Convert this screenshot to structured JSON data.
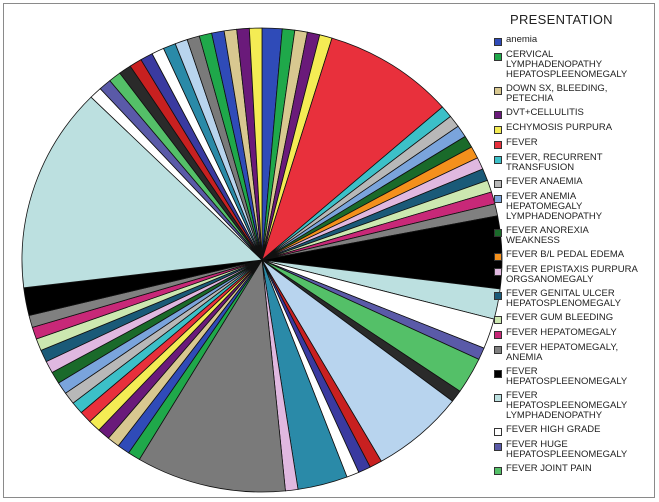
{
  "chart_data": {
    "type": "pie",
    "title": "",
    "legend_title": "PRESENTATION",
    "legend_placement": "right",
    "unit": "",
    "slices": [
      {
        "label": "anemia",
        "color": "#2f4bb8",
        "value": 1.6
      },
      {
        "label": "CERVICAL\nLYMPHADENOPATHY\nHEPATOSPLEENOMEGALY",
        "color": "#1fa84a",
        "value": 1
      },
      {
        "label": "DOWN SX, BLEEDING,\nPETECHIA",
        "color": "#d8c890",
        "value": 1
      },
      {
        "label": "DVT+CELLULITIS",
        "color": "#6a1a7a",
        "value": 1
      },
      {
        "label": "ECHYMOSIS PURPURA",
        "color": "#f4ec54",
        "value": 1
      },
      {
        "label": "FEVER",
        "color": "#e8303c",
        "value": 10.5
      },
      {
        "label": "FEVER, RECURRENT\nTRANSFUSION",
        "color": "#3cc0c8",
        "value": 1
      },
      {
        "label": "FEVER ANAEMIA",
        "color": "#b8b8b8",
        "value": 1
      },
      {
        "label": "FEVER ANEMIA\nHEPATOMEGALY\nLYMPHADENOPATHY",
        "color": "#7aa4dc",
        "value": 1
      },
      {
        "label": "FEVER ANOREXIA\nWEAKNESS",
        "color": "#1a6a2a",
        "value": 1
      },
      {
        "label": "FEVER B/L PEDAL EDEMA",
        "color": "#f4901c",
        "value": 1
      },
      {
        "label": "FEVER EPISTAXIS PURPURA\nORGSANOMEGALY",
        "color": "#e0b8e0",
        "value": 1
      },
      {
        "label": "FEVER GENITAL ULCER\nHEPATOSPLENOMEGALY",
        "color": "#1a5a78",
        "value": 1
      },
      {
        "label": "FEVER GUM BLEEDING",
        "color": "#cce8b0",
        "value": 1
      },
      {
        "label": "FEVER HEPATOMEGALY",
        "color": "#c82878",
        "value": 1
      },
      {
        "label": "FEVER HEPATOMEGALY,\nANEMIA",
        "color": "#808080",
        "value": 1
      },
      {
        "label": "FEVER\nHEPATOSPLEENOMEGALY",
        "color": "#000000",
        "value": 6
      },
      {
        "label": "FEVER\nHEPATOSPLEENOMEGALY\nLYMPHADENOPATHY",
        "color": "#bce0e0",
        "value": 2.5
      },
      {
        "label": "FEVER HIGH GRADE",
        "color": "#ffffff",
        "value": 2.5
      },
      {
        "label": "FEVER HUGE\nHEPATOSPLEENOMEGALY",
        "color": "#5a5aa8",
        "value": 1
      },
      {
        "label": "FEVER JOINT PAIN",
        "color": "#54c068",
        "value": 3
      },
      {
        "label": "",
        "color": "#2a2a2a",
        "value": 1
      },
      {
        "label": "",
        "color": "#b8d4ee",
        "value": 7.5
      },
      {
        "label": "",
        "color": "#c82020",
        "value": 1
      },
      {
        "label": "",
        "color": "#3a3aa0",
        "value": 1
      },
      {
        "label": "",
        "color": "#ffffff",
        "value": 1
      },
      {
        "label": "",
        "color": "#2a8aa8",
        "value": 4
      },
      {
        "label": "",
        "color": "#e0b8e0",
        "value": 1
      },
      {
        "label": "",
        "color": "#7a7a7a",
        "value": 12
      },
      {
        "label": "",
        "color": "#1fa84a",
        "value": 1
      },
      {
        "label": "",
        "color": "#2f4bb8",
        "value": 1
      },
      {
        "label": "",
        "color": "#d8c890",
        "value": 1
      },
      {
        "label": "",
        "color": "#6a1a7a",
        "value": 1
      },
      {
        "label": "",
        "color": "#f4ec54",
        "value": 1
      },
      {
        "label": "",
        "color": "#e8303c",
        "value": 1
      },
      {
        "label": "",
        "color": "#3cc0c8",
        "value": 1
      },
      {
        "label": "",
        "color": "#b8b8b8",
        "value": 1
      },
      {
        "label": "",
        "color": "#7aa4dc",
        "value": 1
      },
      {
        "label": "",
        "color": "#1a6a2a",
        "value": 1
      },
      {
        "label": "",
        "color": "#e0b8e0",
        "value": 1
      },
      {
        "label": "",
        "color": "#1a5a78",
        "value": 1
      },
      {
        "label": "",
        "color": "#cce8b0",
        "value": 1
      },
      {
        "label": "",
        "color": "#c82878",
        "value": 1
      },
      {
        "label": "",
        "color": "#808080",
        "value": 1
      },
      {
        "label": "",
        "color": "#000000",
        "value": 2.3
      },
      {
        "label": "",
        "color": "#bce0e0",
        "value": 17
      },
      {
        "label": "",
        "color": "#ffffff",
        "value": 1
      },
      {
        "label": "",
        "color": "#5a5aa8",
        "value": 1
      },
      {
        "label": "",
        "color": "#54c068",
        "value": 1
      },
      {
        "label": "",
        "color": "#2a2a2a",
        "value": 1
      },
      {
        "label": "",
        "color": "#c82020",
        "value": 1
      },
      {
        "label": "",
        "color": "#3a3aa0",
        "value": 1
      },
      {
        "label": "",
        "color": "#ffffff",
        "value": 1
      },
      {
        "label": "",
        "color": "#2a8aa8",
        "value": 1
      },
      {
        "label": "",
        "color": "#b8d4ee",
        "value": 1
      },
      {
        "label": "",
        "color": "#7a7a7a",
        "value": 1
      },
      {
        "label": "",
        "color": "#1fa84a",
        "value": 1
      },
      {
        "label": "",
        "color": "#2f4bb8",
        "value": 1
      },
      {
        "label": "",
        "color": "#d8c890",
        "value": 1
      },
      {
        "label": "",
        "color": "#6a1a7a",
        "value": 1
      },
      {
        "label": "",
        "color": "#f4ec54",
        "value": 1
      }
    ]
  }
}
